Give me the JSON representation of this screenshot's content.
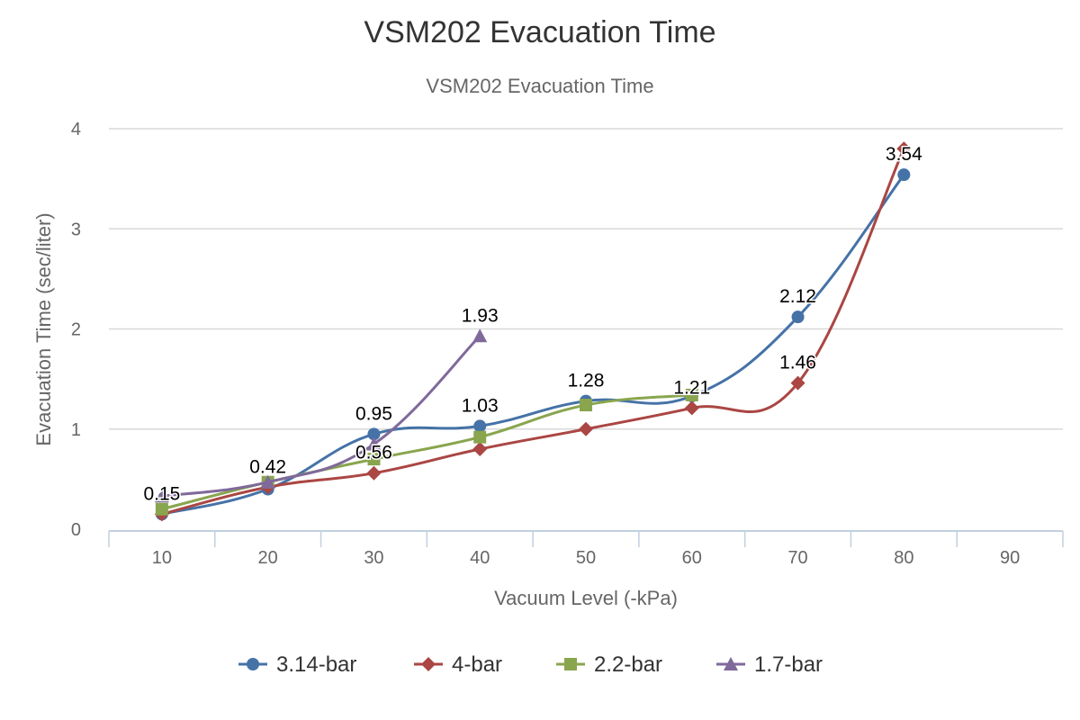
{
  "chart_data": {
    "type": "line",
    "title": "VSM202 Evacuation Time",
    "subtitle": "VSM202 Evacuation Time",
    "xlabel": "Vacuum Level (-kPa)",
    "ylabel": "Evacuation Time (sec/liter)",
    "categories": [
      "10",
      "20",
      "30",
      "40",
      "50",
      "60",
      "70",
      "80",
      "90"
    ],
    "ylim": [
      0,
      4
    ],
    "yticks": [
      "0",
      "1",
      "2",
      "3",
      "4"
    ],
    "grid": true,
    "legend_position": "bottom",
    "smooth": true,
    "series": [
      {
        "name": "3.14-bar",
        "color": "#4572A7",
        "marker": "circle",
        "values": [
          0.15,
          0.4,
          0.95,
          1.03,
          1.28,
          1.33,
          2.12,
          3.54,
          null
        ]
      },
      {
        "name": "4-bar",
        "color": "#AA4643",
        "marker": "diamond",
        "values": [
          0.15,
          0.42,
          0.56,
          0.8,
          1.0,
          1.21,
          1.46,
          3.8,
          null
        ]
      },
      {
        "name": "2.2-bar",
        "color": "#89A54E",
        "marker": "square",
        "values": [
          0.2,
          0.47,
          0.7,
          0.92,
          1.24,
          1.34,
          null,
          null,
          null
        ]
      },
      {
        "name": "1.7-bar",
        "color": "#80699B",
        "marker": "triangle",
        "values": [
          0.33,
          0.47,
          0.85,
          1.93,
          null,
          null,
          null,
          null,
          null
        ]
      }
    ],
    "data_labels": [
      {
        "text": "0.15",
        "category": "10",
        "value": 0.15
      },
      {
        "text": "0.42",
        "category": "20",
        "value": 0.42
      },
      {
        "text": "0.56",
        "category": "30",
        "value": 0.56
      },
      {
        "text": "0.95",
        "category": "30",
        "value": 0.95
      },
      {
        "text": "1.03",
        "category": "40",
        "value": 1.03
      },
      {
        "text": "1.93",
        "category": "40",
        "value": 1.93
      },
      {
        "text": "1.28",
        "category": "50",
        "value": 1.28
      },
      {
        "text": "1.21",
        "category": "60",
        "value": 1.21
      },
      {
        "text": "1.46",
        "category": "70",
        "value": 1.46
      },
      {
        "text": "2.12",
        "category": "70",
        "value": 2.12
      },
      {
        "text": "3.54",
        "category": "80",
        "value": 3.54
      }
    ]
  }
}
